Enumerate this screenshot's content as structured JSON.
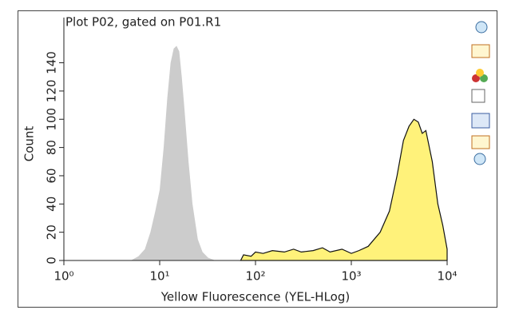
{
  "chart_data": {
    "type": "area",
    "title": "Plot P02, gated on P01.R1",
    "xlabel": "Yellow Fluorescence (YEL-HLog)",
    "ylabel": "Count",
    "xscale": "log",
    "xlim": [
      1,
      10000
    ],
    "xticks": [
      {
        "value": 1,
        "label": "10⁰"
      },
      {
        "value": 10,
        "label": "10¹"
      },
      {
        "value": 100,
        "label": "10²"
      },
      {
        "value": 1000,
        "label": "10³"
      },
      {
        "value": 10000,
        "label": "10⁴"
      }
    ],
    "ylim": [
      0,
      172
    ],
    "yticks": [
      0,
      20,
      40,
      60,
      80,
      100,
      120,
      140
    ],
    "series": [
      {
        "color": "#cccccc",
        "x": [
          5,
          6,
          7,
          8,
          9,
          10,
          11,
          12,
          13,
          14,
          15,
          16,
          17,
          18,
          20,
          22,
          25,
          28,
          32,
          38
        ],
        "values": [
          0,
          3,
          8,
          20,
          35,
          50,
          80,
          115,
          140,
          150,
          152,
          148,
          130,
          110,
          70,
          40,
          15,
          6,
          2,
          0
        ]
      },
      {
        "color": "#fff27a",
        "x": [
          70,
          75,
          90,
          100,
          120,
          150,
          200,
          250,
          300,
          400,
          500,
          600,
          800,
          1000,
          1200,
          1500,
          2000,
          2500,
          3000,
          3500,
          4000,
          4500,
          5000,
          5500,
          6000,
          7000,
          8000,
          9000,
          10000
        ],
        "values": [
          0,
          4,
          3,
          6,
          5,
          7,
          6,
          8,
          6,
          7,
          9,
          6,
          8,
          5,
          7,
          10,
          20,
          35,
          60,
          85,
          95,
          100,
          98,
          90,
          92,
          70,
          40,
          25,
          8
        ]
      }
    ]
  }
}
